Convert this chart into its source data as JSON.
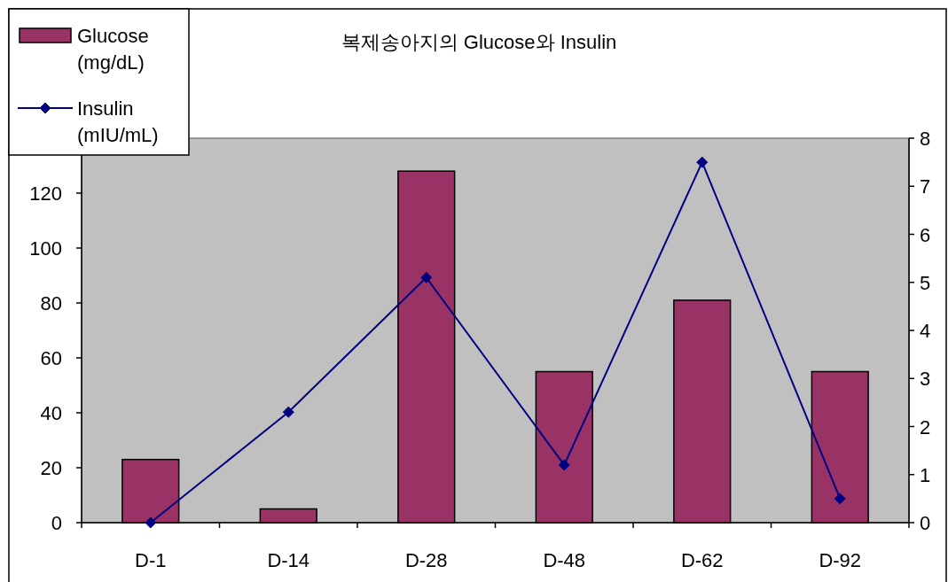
{
  "chart_data": {
    "type": "bar",
    "title": "복제송아지의 Glucose와 Insulin",
    "categories": [
      "D-1",
      "D-14",
      "D-28",
      "D-48",
      "D-62",
      "D-92"
    ],
    "series": [
      {
        "name": "Glucose (mg/dL)",
        "color": "#993366",
        "values": [
          23,
          5,
          128,
          55,
          81,
          55
        ]
      },
      {
        "name": "Insulin (mIU/mL)",
        "type": "line",
        "axis": "y2",
        "color": "#000080",
        "marker": "diamond",
        "values": [
          0,
          2.3,
          5.1,
          1.2,
          7.5,
          0.5
        ]
      }
    ],
    "ylim": [
      0,
      140
    ],
    "yticks": [
      0,
      20,
      40,
      60,
      80,
      100,
      120
    ],
    "y2lim": [
      0,
      8
    ],
    "y2ticks": [
      0,
      1,
      2,
      3,
      4,
      5,
      6,
      7,
      8
    ],
    "legend": "top left",
    "grid": false
  }
}
